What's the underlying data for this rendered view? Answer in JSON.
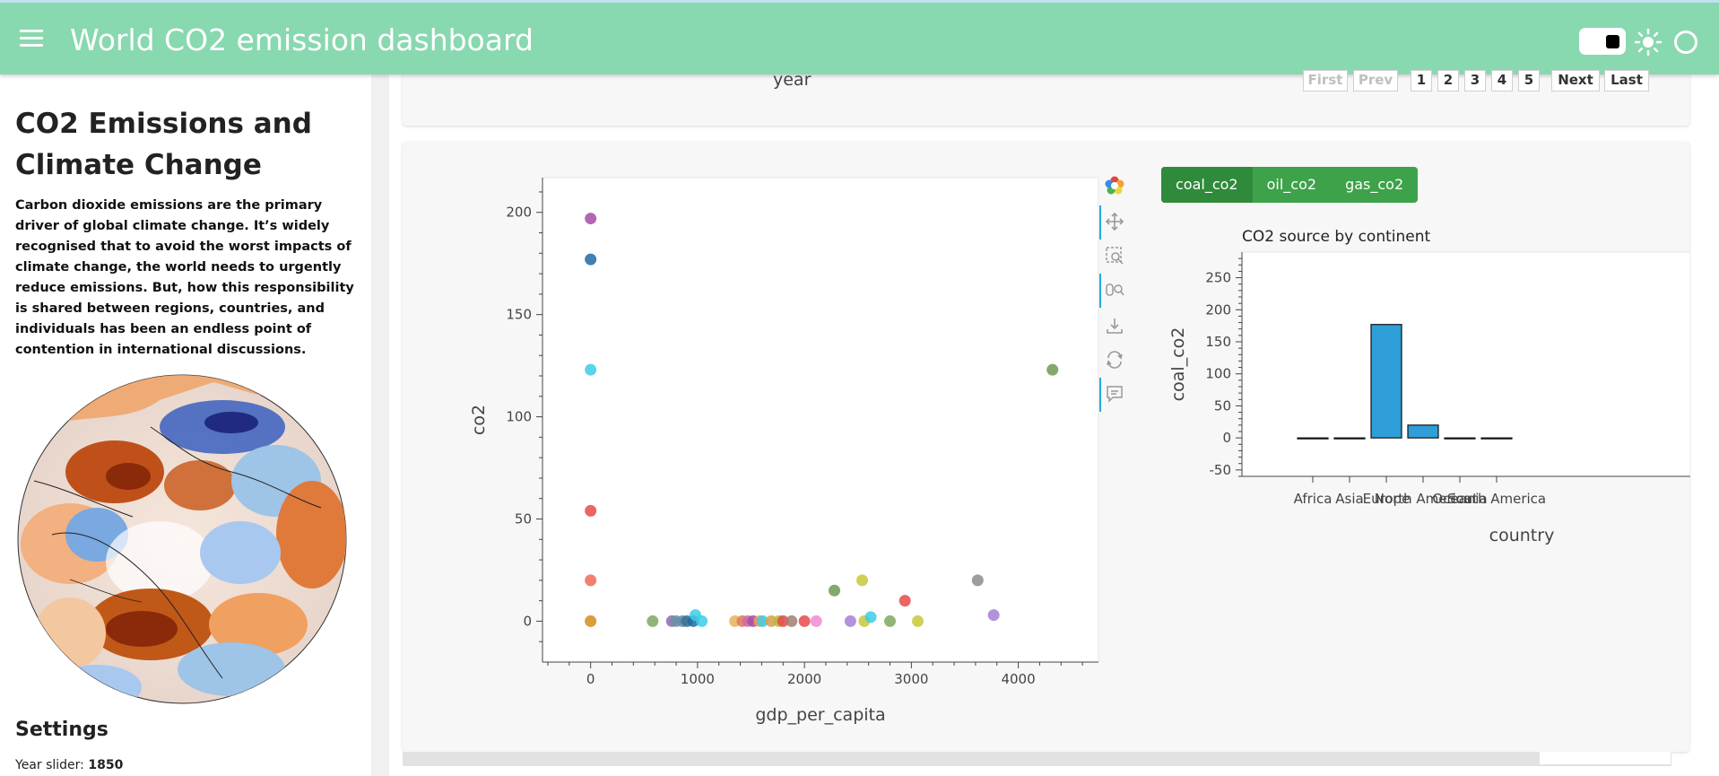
{
  "header": {
    "title": "World CO2 emission dashboard"
  },
  "sidebar": {
    "title": "CO2 Emissions and Climate Change",
    "text": "Carbon dioxide emissions are the primary driver of global climate change. It’s widely recognised that to avoid the worst impacts of climate change, the world needs to urgently reduce emissions. But, how this responsibility is shared between regions, countries, and individuals has been an endless point of contention in international discussions.",
    "settings_title": "Settings",
    "year_slider_label": "Year slider:",
    "year_slider_value": "1850"
  },
  "table_card": {
    "column_label": "year",
    "pager": {
      "first": "First",
      "prev": "Prev",
      "pages": [
        "1",
        "2",
        "3",
        "4",
        "5"
      ],
      "next": "Next",
      "last": "Last"
    }
  },
  "tabs": [
    "coal_co2",
    "oil_co2",
    "gas_co2"
  ],
  "selected_tab": "coal_co2",
  "chart_data": [
    {
      "type": "scatter",
      "title": "",
      "xlabel": "gdp_per_capita",
      "ylabel": "co2",
      "xlim": [
        -450,
        4750
      ],
      "ylim": [
        -20,
        217
      ],
      "xticks": [
        0,
        1000,
        2000,
        3000,
        4000
      ],
      "yticks": [
        0,
        50,
        100,
        150,
        200
      ],
      "points": [
        {
          "x": 0,
          "y": 197,
          "color": "#a64ca6"
        },
        {
          "x": 0,
          "y": 177,
          "color": "#1f6aa5"
        },
        {
          "x": 0,
          "y": 123,
          "color": "#3ccde6"
        },
        {
          "x": 0,
          "y": 54,
          "color": "#e84a4a"
        },
        {
          "x": 0,
          "y": 20,
          "color": "#f06a55"
        },
        {
          "x": 0,
          "y": 0,
          "color": "#e6a83c"
        },
        {
          "x": 0,
          "y": 0,
          "color": "#d89a3a"
        },
        {
          "x": 580,
          "y": 0,
          "color": "#7fa85f"
        },
        {
          "x": 760,
          "y": 0,
          "color": "#8c6bb1"
        },
        {
          "x": 800,
          "y": 0,
          "color": "#6a8fa5"
        },
        {
          "x": 860,
          "y": 0,
          "color": "#5d8fb0"
        },
        {
          "x": 900,
          "y": 0,
          "color": "#3b6e94"
        },
        {
          "x": 960,
          "y": 0,
          "color": "#1f6aa5"
        },
        {
          "x": 980,
          "y": 3,
          "color": "#3ccde6"
        },
        {
          "x": 1040,
          "y": 0,
          "color": "#3ccde6"
        },
        {
          "x": 1350,
          "y": 0,
          "color": "#e6b25a"
        },
        {
          "x": 1420,
          "y": 0,
          "color": "#e0785a"
        },
        {
          "x": 1470,
          "y": 0,
          "color": "#c86fa5"
        },
        {
          "x": 1520,
          "y": 0,
          "color": "#a64ca6"
        },
        {
          "x": 1580,
          "y": 0,
          "color": "#f0a050"
        },
        {
          "x": 1610,
          "y": 0,
          "color": "#3ccde6"
        },
        {
          "x": 1690,
          "y": 0,
          "color": "#d6a04a"
        },
        {
          "x": 1760,
          "y": 0,
          "color": "#b8b840"
        },
        {
          "x": 1800,
          "y": 0,
          "color": "#e84a4a"
        },
        {
          "x": 1880,
          "y": 0,
          "color": "#a08070"
        },
        {
          "x": 2000,
          "y": 0,
          "color": "#e84a4a"
        },
        {
          "x": 2110,
          "y": 0,
          "color": "#f08ad0"
        },
        {
          "x": 2280,
          "y": 15,
          "color": "#6e9a50"
        },
        {
          "x": 2430,
          "y": 0,
          "color": "#a67fd6"
        },
        {
          "x": 2540,
          "y": 20,
          "color": "#c8c83a"
        },
        {
          "x": 2560,
          "y": 0,
          "color": "#c8c83a"
        },
        {
          "x": 2620,
          "y": 2,
          "color": "#3ccde6"
        },
        {
          "x": 2800,
          "y": 0,
          "color": "#7fa85f"
        },
        {
          "x": 2940,
          "y": 10,
          "color": "#e84a4a"
        },
        {
          "x": 3060,
          "y": 0,
          "color": "#c8c83a"
        },
        {
          "x": 3620,
          "y": 20,
          "color": "#8c8c8c"
        },
        {
          "x": 3770,
          "y": 3,
          "color": "#a67fd6"
        },
        {
          "x": 4320,
          "y": 123,
          "color": "#6e9a50"
        }
      ]
    },
    {
      "type": "bar",
      "title": "CO2 source by continent",
      "xlabel": "country",
      "ylabel": "coal_co2",
      "categories": [
        "Africa",
        "Asia",
        "Europe",
        "North America",
        "Oceania",
        "South America"
      ],
      "values": [
        0,
        0,
        177,
        20,
        0,
        0
      ],
      "ylim": [
        -60,
        290
      ],
      "yticks": [
        -50,
        0,
        50,
        100,
        150,
        200,
        250
      ],
      "bar_color": "#2e9fd8"
    }
  ]
}
